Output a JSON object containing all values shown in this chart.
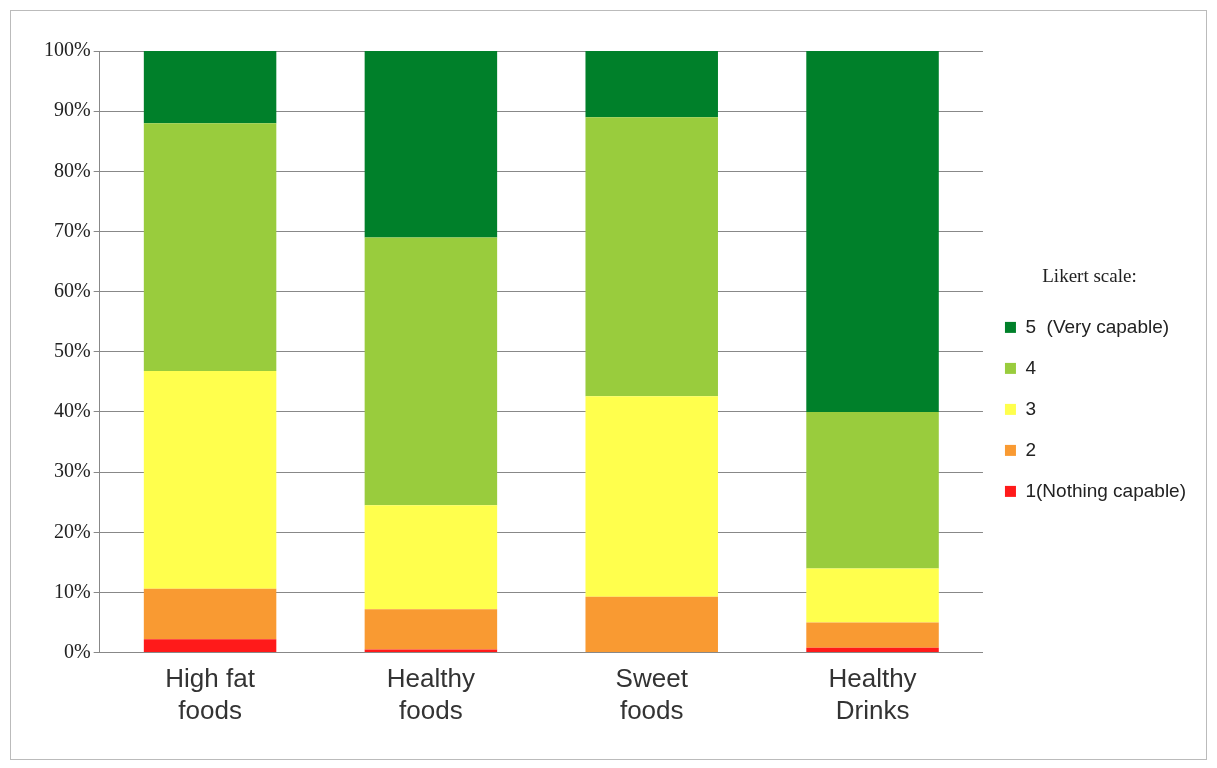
{
  "chart_data": {
    "type": "bar",
    "stacked": true,
    "categories": [
      "High fat foods",
      "Healthy foods",
      "Sweet foods",
      "Healthy Drinks"
    ],
    "series": [
      {
        "name": "1(Nothing capable)",
        "color": "#ff1a1a",
        "values": [
          2.2,
          0.5,
          0,
          0.8
        ]
      },
      {
        "name": "2",
        "color": "#f99a32",
        "values": [
          8.4,
          6.7,
          9.3,
          4.2
        ]
      },
      {
        "name": "3",
        "color": "#ffff4d",
        "values": [
          36.2,
          17.3,
          33.3,
          9
        ]
      },
      {
        "name": "4",
        "color": "#99cc3d",
        "values": [
          41.2,
          44.5,
          46.4,
          26
        ]
      },
      {
        "name": "5  (Very capable)",
        "color": "#00802a",
        "values": [
          12,
          31,
          11,
          60
        ]
      }
    ],
    "legend_title": "Likert scale:",
    "legend": "right",
    "grid": "y",
    "ylim": [
      0,
      100
    ],
    "yticks": [
      {
        "value": 0,
        "label": "0%"
      },
      {
        "value": 10,
        "label": "10%"
      },
      {
        "value": 20,
        "label": "20%"
      },
      {
        "value": 30,
        "label": "30%"
      },
      {
        "value": 40,
        "label": "40%"
      },
      {
        "value": 50,
        "label": "50%"
      },
      {
        "value": 60,
        "label": "60%"
      },
      {
        "value": 70,
        "label": "70%"
      },
      {
        "value": 80,
        "label": "80%"
      },
      {
        "value": 90,
        "label": "90%"
      },
      {
        "value": 100,
        "label": "100%"
      }
    ]
  }
}
